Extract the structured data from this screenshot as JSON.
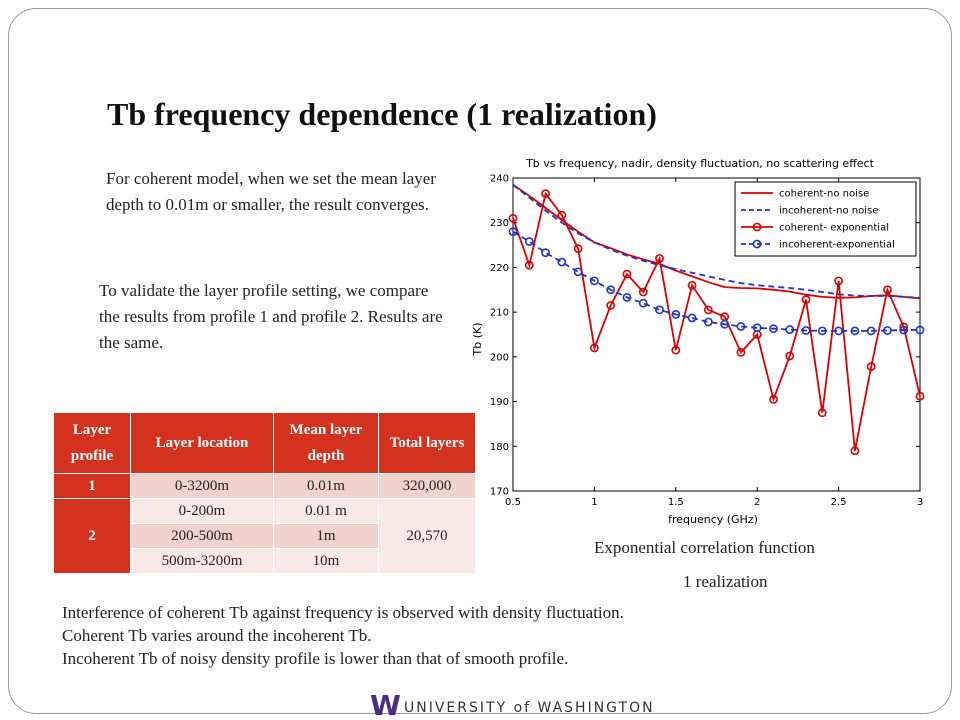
{
  "slide": {
    "title": "Tb frequency dependence (1 realization)",
    "para1": "For coherent model, when we set the mean layer depth to 0.01m or smaller, the result converges.",
    "para2": "To validate the layer profile setting, we compare the results from profile 1 and profile 2. Results are the same.",
    "bottom": [
      "Interference of  coherent Tb against frequency is observed with density fluctuation.",
      "Coherent Tb varies around the incoherent Tb.",
      "Incoherent Tb of noisy density profile is lower than that of smooth profile."
    ],
    "caption1": "Exponential correlation function",
    "caption2": "1 realization",
    "logo": {
      "text": "UNIVERSITY of WASHINGTON",
      "mark": "W",
      "color": "#4b2e83"
    }
  },
  "table": {
    "headers": [
      "Layer profile",
      "Layer location",
      "Mean layer depth",
      "Total layers"
    ],
    "rows": [
      {
        "profile": "1",
        "location": "0-3200m",
        "depth": "0.01m",
        "layers": "320,000"
      },
      {
        "profile": "2",
        "location": "0-200m",
        "depth": "0.01 m",
        "layers": "20,570"
      },
      {
        "profile": "",
        "location": "200-500m",
        "depth": "1m",
        "layers": ""
      },
      {
        "profile": "",
        "location": "500m-3200m",
        "depth": "10m",
        "layers": ""
      }
    ]
  },
  "chart_data": {
    "type": "line",
    "title": "Tb vs frequency, nadir, density fluctuation, no scattering effect",
    "xlabel": "frequency (GHz)",
    "ylabel": "Tb (K)",
    "xlim": [
      0.5,
      3
    ],
    "ylim": [
      170,
      240
    ],
    "xticks": [
      "0.5",
      "1",
      "1.5",
      "2",
      "2.5",
      "3"
    ],
    "yticks": [
      "170",
      "180",
      "190",
      "200",
      "210",
      "220",
      "230",
      "240"
    ],
    "legend_position": "top-right",
    "series": [
      {
        "name": "coherent-no noise",
        "color": "#dd0000",
        "style": "solid",
        "marker": "none",
        "x": [
          0.5,
          0.6,
          0.7,
          0.8,
          0.9,
          1.0,
          1.1,
          1.2,
          1.3,
          1.4,
          1.5,
          1.6,
          1.7,
          1.8,
          1.9,
          2.0,
          2.1,
          2.2,
          2.3,
          2.4,
          2.5,
          2.6,
          2.7,
          2.8,
          2.9,
          3.0
        ],
        "y": [
          238.5,
          236.0,
          233.3,
          230.6,
          228.0,
          225.6,
          224.3,
          222.9,
          221.8,
          220.8,
          219.3,
          218.0,
          216.7,
          215.6,
          215.4,
          215.3,
          215.0,
          214.6,
          213.9,
          213.4,
          213.2,
          213.3,
          213.6,
          213.8,
          213.4,
          213.1
        ]
      },
      {
        "name": "incoherent-no noise",
        "color": "#2233cc",
        "style": "dashed",
        "marker": "none",
        "x": [
          0.5,
          0.6,
          0.7,
          0.8,
          0.9,
          1.0,
          1.1,
          1.2,
          1.3,
          1.4,
          1.5,
          1.6,
          1.7,
          1.8,
          1.9,
          2.0,
          2.1,
          2.2,
          2.3,
          2.4,
          2.5,
          2.6,
          2.7,
          2.8,
          2.9,
          3.0
        ],
        "y": [
          238.5,
          235.6,
          232.7,
          230.0,
          227.6,
          225.6,
          224.0,
          222.6,
          221.5,
          220.5,
          219.6,
          218.8,
          218.0,
          217.2,
          216.5,
          216.0,
          215.7,
          215.4,
          215.0,
          214.5,
          214.0,
          213.7,
          213.6,
          213.6,
          213.4,
          213.2
        ]
      },
      {
        "name": "coherent- exponential",
        "color": "#dd0000",
        "style": "solid",
        "marker": "circle",
        "x": [
          0.5,
          0.6,
          0.7,
          0.8,
          0.9,
          1.0,
          1.1,
          1.2,
          1.3,
          1.4,
          1.5,
          1.6,
          1.7,
          1.8,
          1.9,
          2.0,
          2.1,
          2.2,
          2.3,
          2.4,
          2.5,
          2.6,
          2.7,
          2.8,
          2.9,
          3.0
        ],
        "y": [
          231,
          220.5,
          236.5,
          231.7,
          224.2,
          202,
          211.5,
          218.5,
          214.5,
          222,
          201.5,
          216,
          210.5,
          209,
          201,
          205,
          190.5,
          200.2,
          212.8,
          187.5,
          217,
          179,
          197.8,
          215,
          206.7,
          191.2
        ]
      },
      {
        "name": "incoherent-exponential",
        "color": "#2233cc",
        "style": "dashed",
        "marker": "circle",
        "x": [
          0.5,
          0.6,
          0.7,
          0.8,
          0.9,
          1.0,
          1.1,
          1.2,
          1.3,
          1.4,
          1.5,
          1.6,
          1.7,
          1.8,
          1.9,
          2.0,
          2.1,
          2.2,
          2.3,
          2.4,
          2.5,
          2.6,
          2.7,
          2.8,
          2.9,
          3.0
        ],
        "y": [
          228,
          225.8,
          223.3,
          221.2,
          219,
          217,
          215,
          213.3,
          212,
          210.5,
          209.5,
          208.7,
          207.8,
          207.3,
          206.8,
          206.5,
          206.3,
          206.1,
          205.9,
          205.8,
          205.8,
          205.8,
          205.8,
          205.9,
          206,
          206
        ]
      }
    ]
  }
}
